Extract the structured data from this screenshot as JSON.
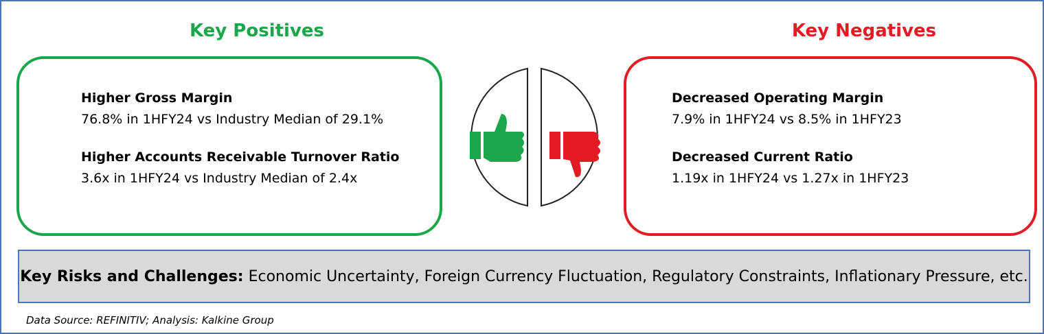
{
  "positives": {
    "title": "Key Positives",
    "items": [
      {
        "heading": "Higher Gross Margin",
        "detail": "76.8% in 1HFY24 vs Industry Median of 29.1%"
      },
      {
        "heading": "Higher Accounts Receivable Turnover Ratio",
        "detail": "3.6x in 1HFY24 vs Industry Median of 2.4x"
      }
    ]
  },
  "negatives": {
    "title": "Key Negatives",
    "items": [
      {
        "heading": "Decreased Operating Margin",
        "detail": "7.9% in 1HFY24 vs 8.5% in 1HFY23"
      },
      {
        "heading": "Decreased Current Ratio",
        "detail": "1.19x in 1HFY24 vs 1.27x in 1HFY23"
      }
    ]
  },
  "risks": {
    "label": "Key Risks and Challenges:",
    "text": "Economic Uncertainty, Foreign Currency Fluctuation, Regulatory Constraints, Inflationary Pressure, etc."
  },
  "source": "Data Source: REFINITIV; Analysis: Kalkine Group"
}
